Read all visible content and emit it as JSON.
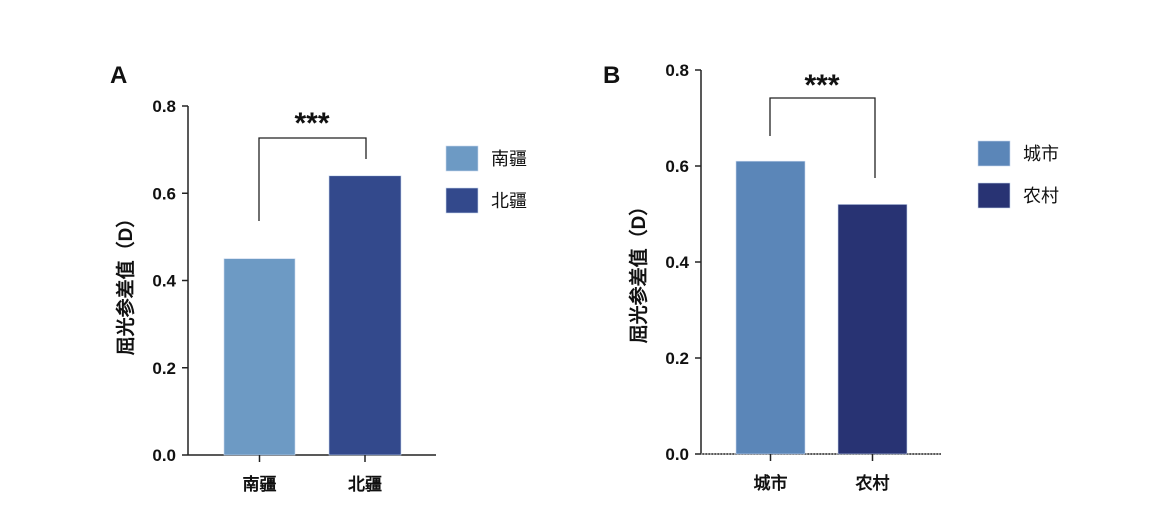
{
  "chart_data": [
    {
      "type": "bar",
      "panel_label": "A",
      "categories": [
        "南疆",
        "北疆"
      ],
      "values": [
        0.45,
        0.64
      ],
      "colors": [
        "#6d9ac4",
        "#33498c"
      ],
      "ylabel": "屈光参差值（D）",
      "ylim": [
        0,
        0.8
      ],
      "yticks": [
        "0.0",
        "0.2",
        "0.4",
        "0.6",
        "0.8"
      ],
      "legend": [
        "南疆",
        "北疆"
      ],
      "legend_position": "right",
      "significance": "***",
      "grid": false
    },
    {
      "type": "bar",
      "panel_label": "B",
      "categories": [
        "城市",
        "农村"
      ],
      "values": [
        0.61,
        0.52
      ],
      "colors": [
        "#5b86b8",
        "#283373"
      ],
      "ylabel": "屈光参差值（D）",
      "ylim": [
        0,
        0.8
      ],
      "yticks": [
        "0.0",
        "0.2",
        "0.4",
        "0.6",
        "0.8"
      ],
      "legend": [
        "城市",
        "农村"
      ],
      "legend_position": "right",
      "significance": "***",
      "grid": false
    }
  ]
}
